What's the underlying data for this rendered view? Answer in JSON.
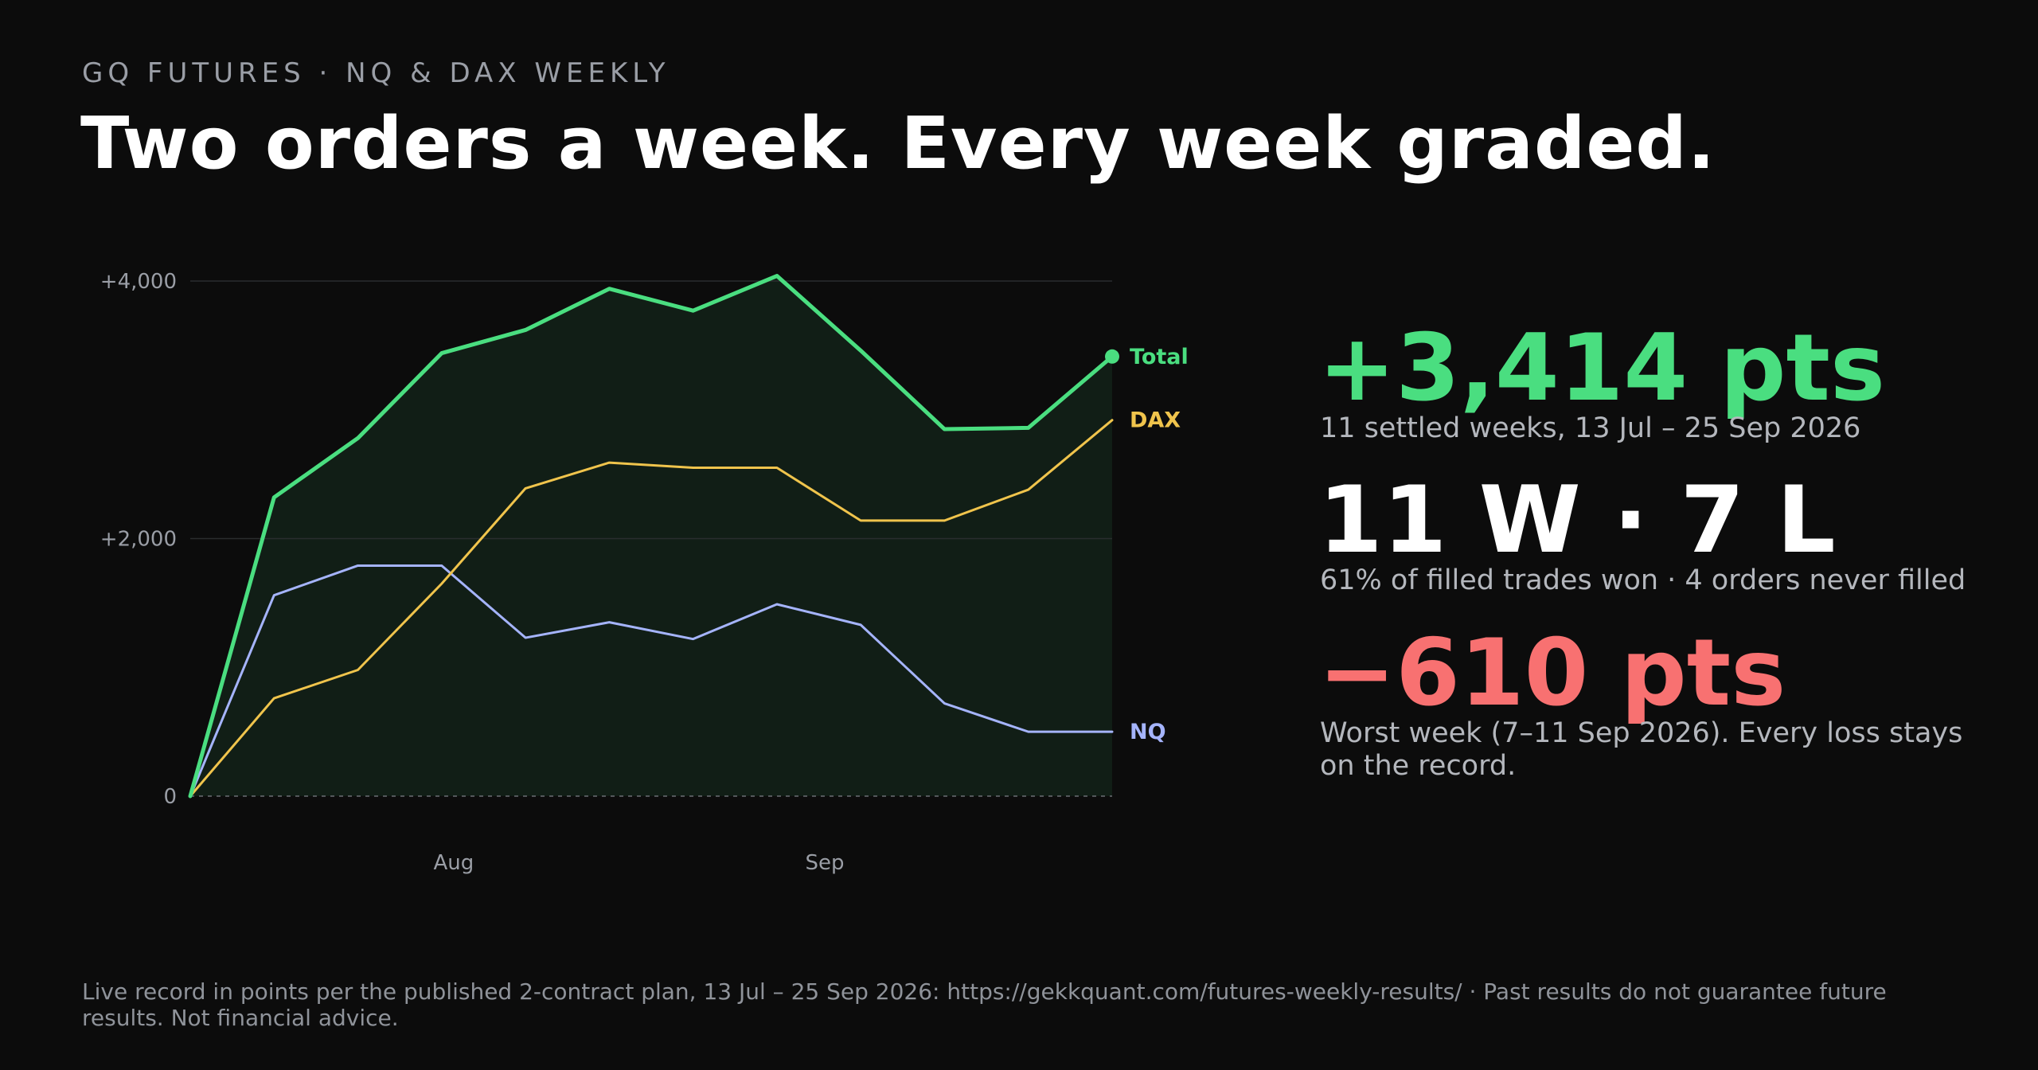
{
  "header": {
    "kicker": "GQ FUTURES · NQ & DAX WEEKLY",
    "headline": "Two orders a week. Every week graded."
  },
  "stats": {
    "total_value": "+3,414 pts",
    "total_sub": "11 settled weeks, 13 Jul – 25 Sep 2026",
    "record_value": "11 W · 7 L",
    "record_sub": "61% of filled trades won · 4 orders never filled",
    "worst_value": "−610 pts",
    "worst_sub": "Worst week (7–11 Sep 2026). Every loss stays on the record."
  },
  "footer": {
    "note": "Live record in points per the published 2-contract plan, 13 Jul – 25 Sep 2026: https://gekkquant.com/futures-weekly-results/ · Past results do not guarantee future results. Not financial advice."
  },
  "colors": {
    "background": "#0c0c0c",
    "total": "#4ade80",
    "dax": "#f0c44c",
    "nq": "#a5b4fc",
    "negative": "#f87171",
    "grid": "#2a2d2e",
    "axis_text": "#9a9ea6"
  },
  "chart_data": {
    "type": "line",
    "x": [
      "2026-07-10",
      "2026-07-17",
      "2026-07-24",
      "2026-07-31",
      "2026-08-07",
      "2026-08-14",
      "2026-08-21",
      "2026-08-28",
      "2026-09-04",
      "2026-09-11",
      "2026-09-18",
      "2026-09-25"
    ],
    "series": [
      {
        "name": "Total",
        "values": [
          0,
          2320,
          2780,
          3440,
          3620,
          3940,
          3770,
          4040,
          3460,
          2850,
          2860,
          3414
        ],
        "color": "#4ade80",
        "fill": true,
        "end_marker": true
      },
      {
        "name": "DAX",
        "values": [
          0,
          760,
          980,
          1650,
          2390,
          2590,
          2550,
          2550,
          2140,
          2140,
          2380,
          2920
        ],
        "color": "#f0c44c"
      },
      {
        "name": "NQ",
        "values": [
          0,
          1560,
          1790,
          1790,
          1230,
          1350,
          1220,
          1490,
          1330,
          720,
          500,
          500
        ],
        "color": "#a5b4fc"
      }
    ],
    "yticks": [
      {
        "value": 0,
        "label": "0"
      },
      {
        "value": 2000,
        "label": "+2,000"
      },
      {
        "value": 4000,
        "label": "+4,000"
      }
    ],
    "xticks": [
      {
        "value": "2026-08-01",
        "label": "Aug"
      },
      {
        "value": "2026-09-01",
        "label": "Sep"
      }
    ],
    "xlim": [
      "2026-07-10",
      "2026-09-25"
    ],
    "ylim": [
      0,
      4000
    ],
    "grid": true,
    "legend": "inline-right"
  }
}
